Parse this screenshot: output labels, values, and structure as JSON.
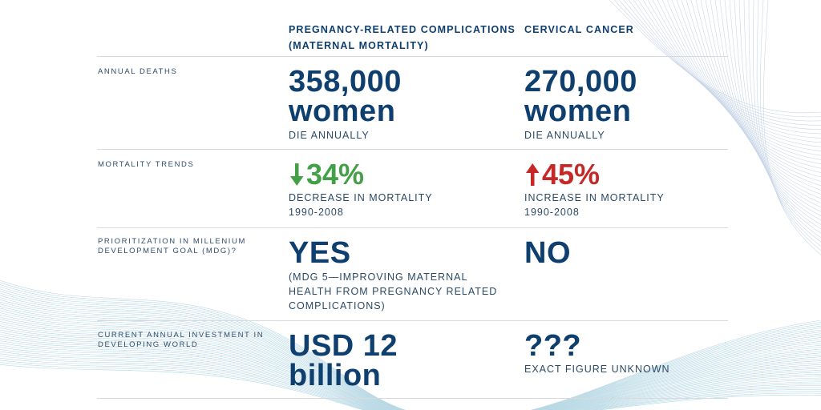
{
  "colors": {
    "navy": "#0f3f6e",
    "green": "#43a047",
    "red": "#c62828",
    "wave": "#9fb6d6",
    "wave_teal": "#6fc7cf",
    "divider": "#d7dbe0"
  },
  "columns": {
    "a": "PREGNANCY-RELATED COMPLICATIONS (MATERNAL MORTALITY)",
    "b": "CERVICAL CANCER"
  },
  "rows": {
    "annual_deaths": {
      "label": "ANNUAL DEATHS",
      "a_value_line1": "358,000",
      "a_value_line2": "women",
      "a_sub": "DIE ANNUALLY",
      "b_value_line1": "270,000",
      "b_value_line2": "women",
      "b_sub": "DIE ANNUALLY"
    },
    "mortality_trends": {
      "label": "MORTALITY TRENDS",
      "a_icon": "arrow-down-icon",
      "a_value": "34%",
      "a_sub_line1": "DECREASE IN MORTALITY",
      "a_sub_line2": "1990-2008",
      "b_icon": "arrow-up-icon",
      "b_value": "45%",
      "b_sub_line1": "INCREASE IN MORTALITY",
      "b_sub_line2": "1990-2008"
    },
    "prioritization": {
      "label_line1": "PRIORITIZATION IN MILLENIUM",
      "label_line2": "DEVELOPMENT GOAL (MDG)?",
      "a_value": "YES",
      "a_sub_line1": "(MDG 5—IMPROVING MATERNAL",
      "a_sub_line2": "HEALTH FROM PREGNANCY RELATED",
      "a_sub_line3": "COMPLICATIONS)",
      "b_value": "NO"
    },
    "investment": {
      "label_line1": "CURRENT ANNUAL INVESTMENT IN",
      "label_line2": "DEVELOPING WORLD",
      "a_value_line1": "USD 12",
      "a_value_line2": "billion",
      "b_value": "???",
      "b_sub": "EXACT FIGURE UNKNOWN"
    }
  }
}
